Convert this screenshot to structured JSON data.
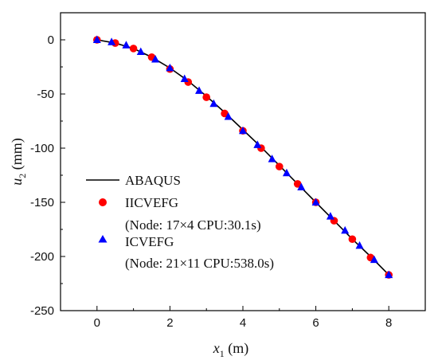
{
  "chart_data": {
    "type": "line",
    "xlabel_main": "x",
    "xlabel_sub": "1",
    "xlabel_unit": " (m)",
    "ylabel_main": "u",
    "ylabel_sub": "2",
    "ylabel_unit": " (mm)",
    "xlim": [
      -1,
      9
    ],
    "ylim": [
      -250,
      25
    ],
    "xticks": [
      0,
      2,
      4,
      6,
      8
    ],
    "yticks": [
      0,
      -50,
      -100,
      -150,
      -200,
      -250
    ],
    "legend_position": "middle-left",
    "series": [
      {
        "name": "ABAQUS",
        "style": "line",
        "color": "#000000",
        "x": [
          0,
          0.5,
          1,
          1.5,
          2,
          2.5,
          3,
          3.5,
          4,
          4.5,
          5,
          5.5,
          6,
          6.5,
          7,
          7.5,
          8
        ],
        "y": [
          0,
          -3,
          -8,
          -16,
          -26,
          -38,
          -52,
          -67,
          -83,
          -99,
          -116,
          -133,
          -150,
          -167,
          -184,
          -200,
          -217
        ]
      },
      {
        "name": "IICVEFG",
        "note": "(Node: 17×4  CPU:30.1s)",
        "style": "circle",
        "color": "#ff0000",
        "x": [
          0,
          0.5,
          1,
          1.5,
          2,
          2.5,
          3,
          3.5,
          4,
          4.5,
          5,
          5.5,
          6,
          6.5,
          7,
          7.5,
          8
        ],
        "y": [
          0,
          -3,
          -8,
          -16,
          -27,
          -39,
          -53,
          -68,
          -84,
          -100,
          -117,
          -133,
          -150,
          -167,
          -184,
          -201,
          -217
        ]
      },
      {
        "name": "ICVEFG",
        "note": "(Node: 21×11  CPU:538.0s)",
        "style": "triangle",
        "color": "#0000ff",
        "x": [
          0,
          0.4,
          0.8,
          1.2,
          1.6,
          2.0,
          2.4,
          2.8,
          3.2,
          3.6,
          4.0,
          4.4,
          4.8,
          5.2,
          5.6,
          6.0,
          6.4,
          6.8,
          7.2,
          7.6,
          8.0
        ],
        "y": [
          0,
          -2,
          -5,
          -11,
          -18,
          -26,
          -36,
          -47,
          -59,
          -71,
          -84,
          -97,
          -110,
          -123,
          -136,
          -150,
          -163,
          -176,
          -190,
          -203,
          -217
        ]
      }
    ]
  }
}
